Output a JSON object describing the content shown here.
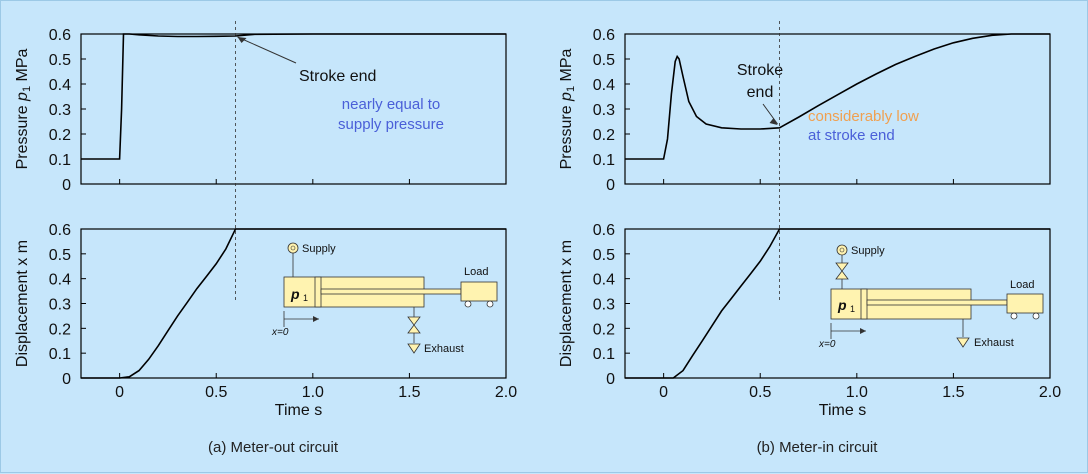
{
  "captions": [
    "(a) Meter-out circuit",
    "(b) Meter-in circuit"
  ],
  "chart_data": [
    {
      "type": "line",
      "panel": "(a) Meter-out circuit",
      "xlabel": "Time     s",
      "xlim": [
        -0.2,
        2.0
      ],
      "xticks": [
        "0",
        "0.5",
        "1.0",
        "1.5",
        "2.0"
      ],
      "stroke_end_time": 0.6,
      "pressure": {
        "ylabel_parts": [
          "Pressure ",
          "p",
          "1",
          " MPa"
        ],
        "ylim": [
          0,
          0.6
        ],
        "yticks": [
          "0",
          "0.1",
          "0.2",
          "0.3",
          "0.4",
          "0.5",
          "0.6"
        ],
        "x": [
          -0.2,
          0,
          0.01,
          0.02,
          0.05,
          0.1,
          0.2,
          0.3,
          0.4,
          0.5,
          0.6,
          0.7,
          1.0,
          1.5,
          2.0
        ],
        "y": [
          0.1,
          0.1,
          0.3,
          0.6,
          0.6,
          0.597,
          0.592,
          0.59,
          0.59,
          0.591,
          0.592,
          0.599,
          0.6,
          0.6,
          0.6
        ],
        "annotations": [
          {
            "text": "Stroke end",
            "color": "#111111"
          },
          {
            "text": "nearly equal to",
            "color": "#4a5fd8"
          },
          {
            "text": "supply pressure",
            "color": "#4a5fd8"
          }
        ]
      },
      "displacement": {
        "ylabel": "Displacement x m",
        "ylim": [
          0,
          0.6
        ],
        "yticks": [
          "0",
          "0.1",
          "0.2",
          "0.3",
          "0.4",
          "0.5",
          "0.6"
        ],
        "x": [
          -0.2,
          0.0,
          0.05,
          0.1,
          0.15,
          0.2,
          0.25,
          0.3,
          0.35,
          0.4,
          0.45,
          0.5,
          0.55,
          0.6,
          1.0,
          1.5,
          2.0
        ],
        "y": [
          0.0,
          0.0,
          0.005,
          0.03,
          0.075,
          0.13,
          0.19,
          0.25,
          0.305,
          0.36,
          0.41,
          0.46,
          0.52,
          0.6,
          0.6,
          0.6,
          0.6
        ]
      },
      "schematic": {
        "variant": "meter-out",
        "supply": "Supply",
        "exhaust": "Exhaust",
        "load": "Load",
        "p_label": "p",
        "p_sub": "1",
        "x0_label": "x=0"
      }
    },
    {
      "type": "line",
      "panel": "(b) Meter-in circuit",
      "xlabel": "Time     s",
      "xlim": [
        -0.2,
        2.0
      ],
      "xticks": [
        "0",
        "0.5",
        "1.0",
        "1.5",
        "2.0"
      ],
      "stroke_end_time": 0.6,
      "pressure": {
        "ylabel_parts": [
          "Pressure ",
          "p",
          "1",
          " MPa"
        ],
        "ylim": [
          0,
          0.6
        ],
        "yticks": [
          "0",
          "0.1",
          "0.2",
          "0.3",
          "0.4",
          "0.5",
          "0.6"
        ],
        "x": [
          -0.2,
          0,
          0.02,
          0.04,
          0.06,
          0.07,
          0.08,
          0.1,
          0.13,
          0.17,
          0.22,
          0.3,
          0.4,
          0.5,
          0.6,
          0.7,
          0.8,
          0.9,
          1.0,
          1.1,
          1.2,
          1.3,
          1.4,
          1.5,
          1.6,
          1.7,
          1.8,
          1.9,
          2.0
        ],
        "y": [
          0.1,
          0.1,
          0.18,
          0.36,
          0.49,
          0.51,
          0.5,
          0.43,
          0.33,
          0.27,
          0.24,
          0.225,
          0.22,
          0.22,
          0.225,
          0.268,
          0.313,
          0.357,
          0.4,
          0.44,
          0.478,
          0.51,
          0.54,
          0.565,
          0.583,
          0.595,
          0.6,
          0.6,
          0.6
        ],
        "annotations": [
          {
            "text": "Stroke",
            "color": "#111111"
          },
          {
            "text": "end",
            "color": "#111111"
          },
          {
            "text": "considerably low",
            "color": "#f0a050"
          },
          {
            "text": "at stroke end",
            "color": "#4a5fd8"
          }
        ]
      },
      "displacement": {
        "ylabel": "Displacement x m",
        "ylim": [
          0,
          0.6
        ],
        "yticks": [
          "0",
          "0.1",
          "0.2",
          "0.3",
          "0.4",
          "0.5",
          "0.6"
        ],
        "x": [
          -0.2,
          0.0,
          0.05,
          0.1,
          0.15,
          0.2,
          0.25,
          0.3,
          0.35,
          0.4,
          0.45,
          0.5,
          0.55,
          0.6,
          1.0,
          1.5,
          2.0
        ],
        "y": [
          0.0,
          0.0,
          0.0,
          0.03,
          0.09,
          0.15,
          0.21,
          0.27,
          0.32,
          0.37,
          0.42,
          0.47,
          0.53,
          0.6,
          0.6,
          0.6,
          0.6
        ]
      },
      "schematic": {
        "variant": "meter-in",
        "supply": "Supply",
        "exhaust": "Exhaust",
        "load": "Load",
        "p_label": "p",
        "p_sub": "1",
        "x0_label": "x=0"
      }
    }
  ]
}
